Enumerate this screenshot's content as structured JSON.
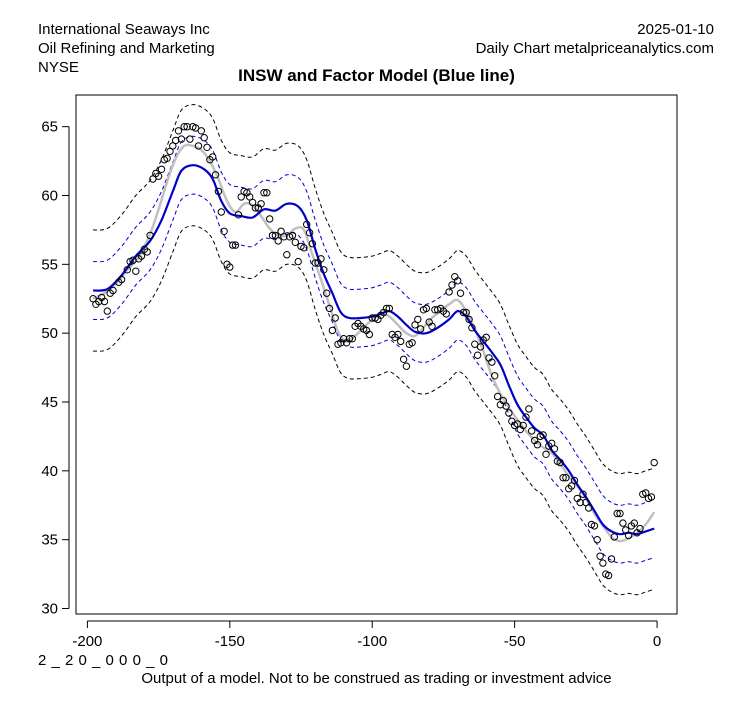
{
  "header": {
    "company": "International Seaways Inc",
    "industry": "Oil Refining and Marketing",
    "exchange": "NYSE",
    "date": "2025-01-10",
    "source": "Daily Chart metalpriceanalytics.com"
  },
  "footer": {
    "model_code": "2 _ 2 0 _ 0 0 0 _ 0",
    "disclaimer": "Output of a model. Not to be construed as trading or investment advice"
  },
  "chart_data": {
    "type": "scatter",
    "title": "INSW and Factor Model (Blue line)",
    "xlabel": "",
    "ylabel": "",
    "xlim": [
      -204,
      7
    ],
    "ylim": [
      29.6,
      67.3
    ],
    "x_ticks": [
      -200,
      -150,
      -100,
      -50,
      0
    ],
    "y_ticks": [
      30,
      35,
      40,
      45,
      50,
      55,
      60,
      65
    ],
    "grid": false,
    "colors": {
      "model": "#0000cc",
      "band": "#0000cc",
      "outer_band": "#000000",
      "smooth": "#c0c0c0",
      "points": "#000000"
    },
    "model_knots": [
      [
        -198,
        53.1
      ],
      [
        -193,
        53.2
      ],
      [
        -188,
        54.2
      ],
      [
        -183,
        55.6
      ],
      [
        -178,
        56.7
      ],
      [
        -174,
        58.2
      ],
      [
        -170,
        60.3
      ],
      [
        -167,
        61.8
      ],
      [
        -163,
        62.2
      ],
      [
        -159,
        61.9
      ],
      [
        -156,
        61.2
      ],
      [
        -153,
        59.6
      ],
      [
        -150,
        58.7
      ],
      [
        -146,
        58.5
      ],
      [
        -142,
        58.4
      ],
      [
        -138,
        59.0
      ],
      [
        -134,
        58.9
      ],
      [
        -130,
        59.4
      ],
      [
        -126,
        59.2
      ],
      [
        -123,
        58.2
      ],
      [
        -120,
        56.1
      ],
      [
        -117,
        54.3
      ],
      [
        -114,
        52.9
      ],
      [
        -111,
        51.5
      ],
      [
        -108,
        51.1
      ],
      [
        -104,
        51.1
      ],
      [
        -100,
        51.2
      ],
      [
        -97,
        51.4
      ],
      [
        -94,
        51.6
      ],
      [
        -91,
        51.2
      ],
      [
        -88,
        50.6
      ],
      [
        -85,
        50.1
      ],
      [
        -81,
        50.0
      ],
      [
        -77,
        50.4
      ],
      [
        -73,
        51.0
      ],
      [
        -70,
        51.6
      ],
      [
        -67,
        51.2
      ],
      [
        -64,
        50.2
      ],
      [
        -61,
        49.4
      ],
      [
        -58,
        48.6
      ],
      [
        -55,
        47.7
      ],
      [
        -52,
        46.2
      ],
      [
        -49,
        44.8
      ],
      [
        -46,
        43.9
      ],
      [
        -43,
        43.1
      ],
      [
        -40,
        42.6
      ],
      [
        -37,
        41.5
      ],
      [
        -34,
        40.8
      ],
      [
        -31,
        40.0
      ],
      [
        -28,
        39.0
      ],
      [
        -25,
        38.1
      ],
      [
        -22,
        37.1
      ],
      [
        -19,
        36.1
      ],
      [
        -16,
        35.6
      ],
      [
        -13,
        35.4
      ],
      [
        -10,
        35.5
      ],
      [
        -7,
        35.4
      ],
      [
        -4,
        35.6
      ],
      [
        -1,
        35.8
      ]
    ],
    "band_offset_inner": 2.1,
    "band_offset_outer": 4.4,
    "smooth_knots": [
      [
        -198,
        52.5
      ],
      [
        -194,
        52.9
      ],
      [
        -190,
        53.6
      ],
      [
        -186,
        54.6
      ],
      [
        -182,
        55.5
      ],
      [
        -178,
        57.2
      ],
      [
        -175,
        59.0
      ],
      [
        -172,
        61.0
      ],
      [
        -169,
        62.7
      ],
      [
        -166,
        63.6
      ],
      [
        -163,
        63.6
      ],
      [
        -160,
        63.3
      ],
      [
        -157,
        62.5
      ],
      [
        -154,
        61.2
      ],
      [
        -151,
        59.6
      ],
      [
        -148,
        58.8
      ],
      [
        -145,
        59.4
      ],
      [
        -142,
        59.3
      ],
      [
        -139,
        58.5
      ],
      [
        -136,
        57.6
      ],
      [
        -133,
        57.1
      ],
      [
        -130,
        57.1
      ],
      [
        -127,
        57.6
      ],
      [
        -124,
        57.5
      ],
      [
        -121,
        55.7
      ],
      [
        -118,
        53.9
      ],
      [
        -115,
        52.0
      ],
      [
        -112,
        50.1
      ],
      [
        -109,
        49.4
      ],
      [
        -106,
        49.8
      ],
      [
        -103,
        50.4
      ],
      [
        -100,
        51.0
      ],
      [
        -97,
        51.4
      ],
      [
        -94,
        51.2
      ],
      [
        -91,
        50.6
      ],
      [
        -88,
        50.0
      ],
      [
        -85,
        49.8
      ],
      [
        -82,
        50.4
      ],
      [
        -79,
        51.1
      ],
      [
        -76,
        51.6
      ],
      [
        -73,
        52.1
      ],
      [
        -70,
        52.4
      ],
      [
        -67,
        51.6
      ],
      [
        -64,
        50.3
      ],
      [
        -61,
        48.7
      ],
      [
        -58,
        46.9
      ],
      [
        -55,
        45.6
      ],
      [
        -52,
        44.6
      ],
      [
        -49,
        43.7
      ],
      [
        -46,
        42.9
      ],
      [
        -43,
        42.2
      ],
      [
        -40,
        41.7
      ],
      [
        -37,
        41.3
      ],
      [
        -34,
        40.5
      ],
      [
        -31,
        39.6
      ],
      [
        -28,
        38.9
      ],
      [
        -25,
        38.0
      ],
      [
        -22,
        36.9
      ],
      [
        -19,
        36.0
      ],
      [
        -16,
        35.2
      ],
      [
        -13,
        34.9
      ],
      [
        -10,
        35.1
      ],
      [
        -7,
        35.5
      ],
      [
        -4,
        36.1
      ],
      [
        -1,
        37.0
      ]
    ],
    "points": [
      [
        -198,
        52.5
      ],
      [
        -197,
        52.1
      ],
      [
        -196,
        52.3
      ],
      [
        -195,
        52.6
      ],
      [
        -194,
        52.3
      ],
      [
        -193,
        51.6
      ],
      [
        -192,
        52.9
      ],
      [
        -191,
        53.1
      ],
      [
        -189,
        53.7
      ],
      [
        -188,
        53.9
      ],
      [
        -186,
        54.6
      ],
      [
        -185,
        55.2
      ],
      [
        -184,
        55.3
      ],
      [
        -183,
        54.5
      ],
      [
        -182,
        55.4
      ],
      [
        -181,
        55.6
      ],
      [
        -180,
        56.1
      ],
      [
        -179,
        55.9
      ],
      [
        -178,
        57.1
      ],
      [
        -177,
        61.2
      ],
      [
        -176,
        61.6
      ],
      [
        -175,
        61.4
      ],
      [
        -174,
        61.9
      ],
      [
        -173,
        62.6
      ],
      [
        -172,
        62.7
      ],
      [
        -171,
        63.2
      ],
      [
        -170,
        63.6
      ],
      [
        -169,
        64.0
      ],
      [
        -168,
        64.7
      ],
      [
        -167,
        64.1
      ],
      [
        -166,
        65.0
      ],
      [
        -165,
        65.0
      ],
      [
        -164,
        64.1
      ],
      [
        -163,
        65.0
      ],
      [
        -162,
        64.9
      ],
      [
        -161,
        63.6
      ],
      [
        -160,
        64.7
      ],
      [
        -159,
        64.2
      ],
      [
        -158,
        63.5
      ],
      [
        -157,
        62.6
      ],
      [
        -156,
        62.8
      ],
      [
        -155,
        61.5
      ],
      [
        -154,
        60.3
      ],
      [
        -153,
        58.8
      ],
      [
        -152,
        57.4
      ],
      [
        -151,
        55.0
      ],
      [
        -150,
        54.8
      ],
      [
        -149,
        56.4
      ],
      [
        -148,
        56.4
      ],
      [
        -147,
        58.6
      ],
      [
        -146,
        59.9
      ],
      [
        -145,
        60.3
      ],
      [
        -144,
        60.2
      ],
      [
        -143,
        59.9
      ],
      [
        -142,
        59.5
      ],
      [
        -141,
        59.1
      ],
      [
        -140,
        59.1
      ],
      [
        -139,
        59.4
      ],
      [
        -138,
        60.2
      ],
      [
        -137,
        60.2
      ],
      [
        -136,
        58.3
      ],
      [
        -135,
        57.1
      ],
      [
        -134,
        57.1
      ],
      [
        -133,
        56.7
      ],
      [
        -132,
        57.4
      ],
      [
        -131,
        57.0
      ],
      [
        -130,
        55.7
      ],
      [
        -129,
        57.0
      ],
      [
        -128,
        57.1
      ],
      [
        -127,
        56.6
      ],
      [
        -126,
        55.2
      ],
      [
        -125,
        56.3
      ],
      [
        -124,
        56.2
      ],
      [
        -123,
        57.9
      ],
      [
        -122,
        57.3
      ],
      [
        -121,
        56.5
      ],
      [
        -120,
        55.1
      ],
      [
        -119,
        55.1
      ],
      [
        -118,
        55.4
      ],
      [
        -117,
        54.6
      ],
      [
        -116,
        52.9
      ],
      [
        -115,
        51.8
      ],
      [
        -114,
        50.2
      ],
      [
        -113,
        51.1
      ],
      [
        -112,
        49.2
      ],
      [
        -111,
        49.3
      ],
      [
        -110,
        49.6
      ],
      [
        -109,
        49.3
      ],
      [
        -108,
        49.6
      ],
      [
        -107,
        49.6
      ],
      [
        -106,
        50.5
      ],
      [
        -105,
        50.7
      ],
      [
        -104,
        50.5
      ],
      [
        -103,
        50.3
      ],
      [
        -102,
        50.2
      ],
      [
        -101,
        49.9
      ],
      [
        -100,
        51.1
      ],
      [
        -99,
        51.1
      ],
      [
        -98,
        51.0
      ],
      [
        -97,
        51.3
      ],
      [
        -96,
        51.5
      ],
      [
        -95,
        51.8
      ],
      [
        -94,
        51.8
      ],
      [
        -93,
        49.9
      ],
      [
        -92,
        49.7
      ],
      [
        -91,
        49.9
      ],
      [
        -90,
        49.4
      ],
      [
        -89,
        48.1
      ],
      [
        -88,
        47.6
      ],
      [
        -87,
        49.2
      ],
      [
        -86,
        49.3
      ],
      [
        -85,
        50.6
      ],
      [
        -84,
        51.0
      ],
      [
        -83,
        50.3
      ],
      [
        -82,
        51.7
      ],
      [
        -81,
        51.8
      ],
      [
        -80,
        50.8
      ],
      [
        -79,
        50.5
      ],
      [
        -78,
        51.7
      ],
      [
        -77,
        51.7
      ],
      [
        -76,
        51.8
      ],
      [
        -75,
        51.6
      ],
      [
        -74,
        51.4
      ],
      [
        -73,
        53.0
      ],
      [
        -72,
        53.5
      ],
      [
        -71,
        54.1
      ],
      [
        -70,
        53.8
      ],
      [
        -69,
        52.9
      ],
      [
        -68,
        51.5
      ],
      [
        -67,
        51.5
      ],
      [
        -66,
        51.0
      ],
      [
        -65,
        50.4
      ],
      [
        -64,
        49.2
      ],
      [
        -63,
        48.4
      ],
      [
        -62,
        49.0
      ],
      [
        -61,
        49.5
      ],
      [
        -60,
        49.7
      ],
      [
        -59,
        48.2
      ],
      [
        -58,
        47.9
      ],
      [
        -57,
        46.9
      ],
      [
        -56,
        45.4
      ],
      [
        -55,
        44.8
      ],
      [
        -54,
        45.1
      ],
      [
        -53,
        44.7
      ],
      [
        -52,
        44.2
      ],
      [
        -51,
        43.6
      ],
      [
        -50,
        43.3
      ],
      [
        -49,
        43.4
      ],
      [
        -48,
        43.0
      ],
      [
        -47,
        43.3
      ],
      [
        -46,
        43.9
      ],
      [
        -45,
        44.5
      ],
      [
        -44,
        42.9
      ],
      [
        -43,
        42.2
      ],
      [
        -42,
        41.9
      ],
      [
        -41,
        42.5
      ],
      [
        -40,
        42.6
      ],
      [
        -39,
        41.2
      ],
      [
        -38,
        41.8
      ],
      [
        -37,
        42.0
      ],
      [
        -36,
        41.6
      ],
      [
        -35,
        40.7
      ],
      [
        -34,
        40.6
      ],
      [
        -33,
        39.5
      ],
      [
        -32,
        39.5
      ],
      [
        -31,
        38.7
      ],
      [
        -30,
        38.9
      ],
      [
        -29,
        39.3
      ],
      [
        -28,
        38.0
      ],
      [
        -27,
        37.7
      ],
      [
        -26,
        38.3
      ],
      [
        -25,
        37.7
      ],
      [
        -24,
        37.3
      ],
      [
        -23,
        36.1
      ],
      [
        -22,
        36.0
      ],
      [
        -21,
        35.0
      ],
      [
        -20,
        33.8
      ],
      [
        -19,
        33.3
      ],
      [
        -18,
        32.5
      ],
      [
        -17,
        32.4
      ],
      [
        -16,
        33.6
      ],
      [
        -15,
        35.2
      ],
      [
        -14,
        36.9
      ],
      [
        -13,
        36.9
      ],
      [
        -12,
        36.2
      ],
      [
        -11,
        35.7
      ],
      [
        -10,
        35.3
      ],
      [
        -9,
        36.0
      ],
      [
        -8,
        36.2
      ],
      [
        -7,
        35.5
      ],
      [
        -6,
        35.8
      ],
      [
        -5,
        38.3
      ],
      [
        -4,
        38.4
      ],
      [
        -3,
        38.0
      ],
      [
        -2,
        38.1
      ],
      [
        -1,
        40.6
      ]
    ]
  }
}
